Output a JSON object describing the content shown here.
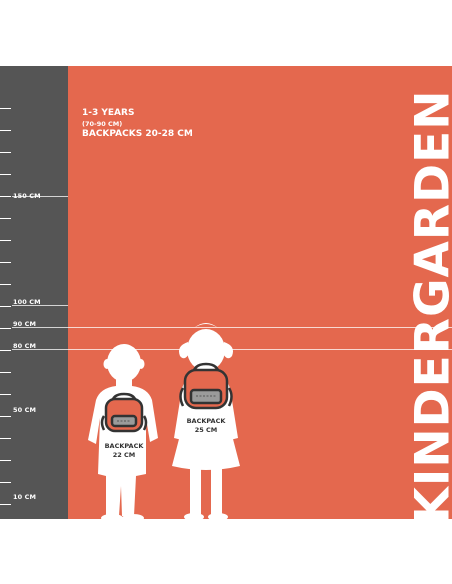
{
  "header": {
    "age": "1-3 YEARS",
    "height_range": "(70-90 CM)",
    "backpack_range": "BACKPACKS 20-28 CM"
  },
  "title": "KINDERGARDEN",
  "ruler": {
    "labels": [
      "150 CM",
      "100 CM",
      "90 CM",
      "80 CM",
      "50 CM",
      "10 CM"
    ]
  },
  "backpacks": [
    {
      "line1": "BACKPACK",
      "line2": "22 CM"
    },
    {
      "line1": "BACKPACK",
      "line2": "25 CM"
    }
  ],
  "colors": {
    "background": "#e4684e",
    "ruler": "#555555",
    "figure": "#ffffff",
    "backpack_outline": "#333333",
    "backpack_pocket": "#9b9b9b"
  }
}
